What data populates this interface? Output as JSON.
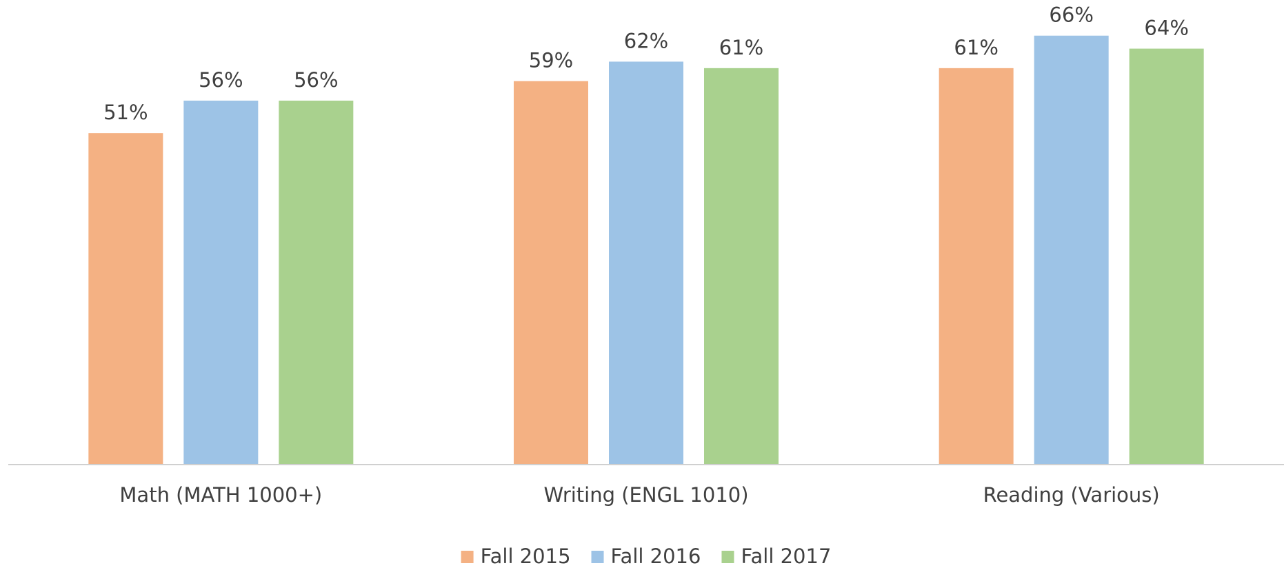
{
  "chart_data": {
    "type": "bar",
    "categories": [
      "Math (MATH 1000+)",
      "Writing (ENGL 1010)",
      "Reading (Various)"
    ],
    "series": [
      {
        "name": "Fall 2015",
        "color": "#f4b183",
        "values": [
          51,
          59,
          61
        ],
        "value_labels": [
          "51%",
          "59%",
          "61%"
        ]
      },
      {
        "name": "Fall 2016",
        "color": "#9dc3e6",
        "values": [
          56,
          62,
          66
        ],
        "value_labels": [
          "56%",
          "62%",
          "66%"
        ]
      },
      {
        "name": "Fall 2017",
        "color": "#a9d18e",
        "values": [
          56,
          61,
          64
        ],
        "value_labels": [
          "56%",
          "61%",
          "64%"
        ]
      }
    ],
    "ylim": [
      0,
      70
    ],
    "legend": "bottom"
  }
}
